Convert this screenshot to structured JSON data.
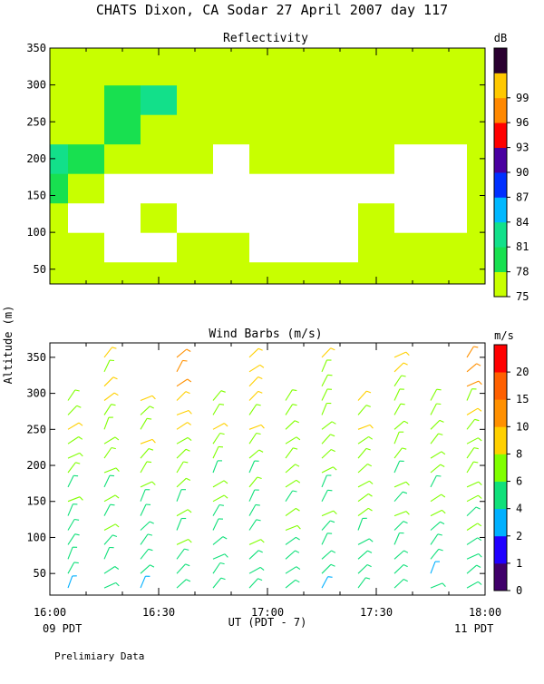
{
  "title": "CHATS Dixon, CA  Sodar  27 April 2007  day 117",
  "footer_note": "Prelimiary Data",
  "colors": {
    "refl_scale": [
      "#c8ff00",
      "#18e050",
      "#12e08a",
      "#00b8ff",
      "#0030ff",
      "#4a00a0",
      "#ff0000",
      "#ff8800",
      "#ffc800",
      "#2a0030"
    ],
    "wind_scale": [
      "#40006a",
      "#2000ff",
      "#00b0ff",
      "#10e07a",
      "#80ff00",
      "#ffd000",
      "#ff9000",
      "#ff6000",
      "#ff0000"
    ]
  },
  "chart_data": [
    {
      "type": "heatmap",
      "title": "Reflectivity",
      "ylabel": "",
      "ylim": [
        30,
        350
      ],
      "yticks": [
        50,
        100,
        150,
        200,
        250,
        300,
        350
      ],
      "xlim": [
        "16:00",
        "18:00"
      ],
      "colorbar": {
        "unit": "dB",
        "ticks": [
          "99",
          "96",
          "93",
          "90",
          "87",
          "84",
          "81",
          "78",
          "75"
        ]
      },
      "x_minutes": [
        0,
        10,
        20,
        30,
        40,
        50,
        60,
        70,
        80,
        90,
        100,
        110,
        120
      ],
      "y_levels": [
        40,
        80,
        120,
        160,
        200,
        240,
        280,
        320,
        350
      ],
      "levels_db": [
        [
          76,
          76,
          76,
          76,
          77,
          77,
          77,
          77,
          77,
          76,
          76,
          77,
          77
        ],
        [
          76,
          76,
          74,
          74,
          76,
          76,
          74,
          74,
          74,
          76,
          76,
          76,
          77
        ],
        [
          76,
          74,
          74,
          76,
          74,
          74,
          74,
          74,
          74,
          76,
          74,
          74,
          76
        ],
        [
          78,
          76,
          74,
          74,
          74,
          74,
          74,
          74,
          74,
          74,
          74,
          74,
          76
        ],
        [
          81,
          78,
          76,
          76,
          76,
          74,
          76,
          76,
          76,
          76,
          74,
          74,
          76
        ],
        [
          77,
          77,
          78,
          77,
          76,
          77,
          76,
          77,
          77,
          77,
          77,
          77,
          77
        ],
        [
          76,
          77,
          78,
          81,
          77,
          76,
          76,
          76,
          76,
          76,
          77,
          77,
          76
        ],
        [
          76,
          76,
          76,
          77,
          77,
          76,
          76,
          76,
          76,
          77,
          76,
          76,
          77
        ],
        [
          76,
          76,
          76,
          76,
          76,
          76,
          76,
          76,
          76,
          76,
          76,
          76,
          76
        ]
      ]
    },
    {
      "type": "scatter",
      "title": "Wind Barbs (m/s)",
      "ylabel": "Altitude (m)",
      "xlabel": "UT  (PDT - 7)",
      "x_ticks": [
        "16:00",
        "16:30",
        "17:00",
        "17:30",
        "18:00"
      ],
      "x_tick_minutes": [
        0,
        30,
        60,
        90,
        120
      ],
      "x_sub_labels": {
        "left": "09 PDT",
        "right": "11 PDT"
      },
      "ylim": [
        20,
        370
      ],
      "yticks": [
        50,
        100,
        150,
        200,
        250,
        300,
        350
      ],
      "colorbar": {
        "unit": "m/s",
        "ticks": [
          "20",
          "15",
          "10",
          "8",
          "6",
          "4",
          "2",
          "1",
          "0"
        ]
      },
      "profile_minutes": [
        5,
        15,
        25,
        35,
        45,
        55,
        65,
        75,
        85,
        95,
        105,
        115
      ],
      "altitudes_m": [
        30,
        50,
        70,
        90,
        110,
        130,
        150,
        170,
        190,
        210,
        230,
        250,
        270,
        290,
        310,
        330,
        350
      ]
    }
  ]
}
